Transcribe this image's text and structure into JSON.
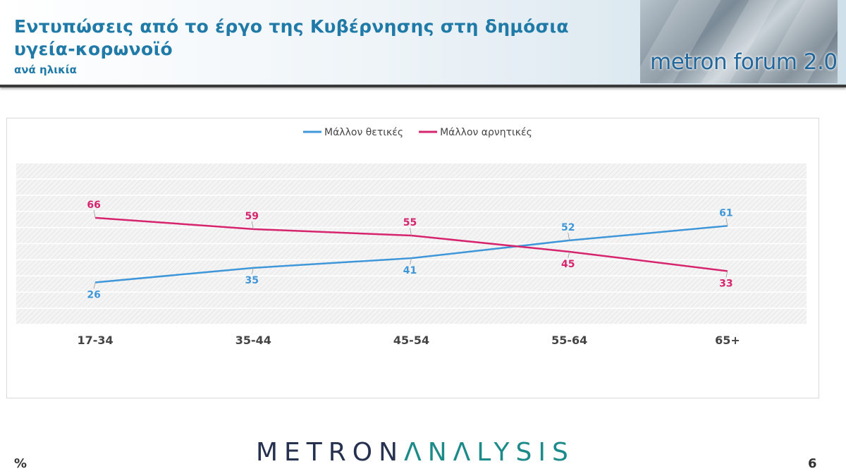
{
  "header": {
    "title": "Εντυπώσεις από το έργο της Κυβέρνησης στη δημόσια υγεία-κορωνοϊό",
    "subtitle": "ανά ηλικία",
    "logo_text": "metron forum 2.0"
  },
  "chart_data": {
    "type": "line",
    "categories": [
      "17-34",
      "35-44",
      "45-54",
      "55-64",
      "65+"
    ],
    "series": [
      {
        "name": "Μάλλον θετικές",
        "values": [
          26,
          35,
          41,
          52,
          61
        ],
        "color": "#3f97d9"
      },
      {
        "name": "Μάλλον αρνητικές",
        "values": [
          66,
          59,
          55,
          45,
          33
        ],
        "color": "#d6246e"
      }
    ],
    "ylim": [
      0,
      100
    ],
    "legend_position": "top",
    "grid": true
  },
  "footer": {
    "brand_part1": "METRON",
    "brand_part2": "ΛNΛLYSIS",
    "unit_note": "%",
    "page_number": "6"
  }
}
